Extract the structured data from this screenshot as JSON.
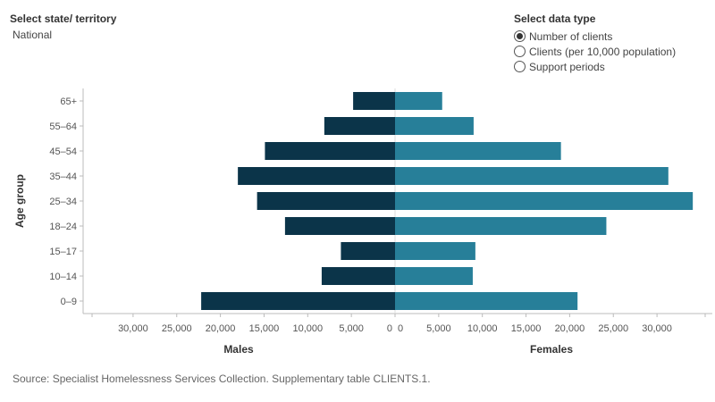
{
  "filters": {
    "state_label": "Select state/ territory",
    "state_value": "National",
    "datatype_label": "Select data type",
    "datatype_options": [
      {
        "label": "Number of clients",
        "selected": true
      },
      {
        "label": "Clients (per 10,000 population)",
        "selected": false
      },
      {
        "label": "Support periods",
        "selected": false
      }
    ]
  },
  "chart_data": {
    "type": "bar",
    "orientation": "horizontal-population-pyramid",
    "ylabel": "Age group",
    "categories": [
      "65+",
      "55–64",
      "45–54",
      "35–44",
      "25–34",
      "18–24",
      "15–17",
      "10–14",
      "0–9"
    ],
    "series": [
      {
        "name": "Males",
        "side": "left",
        "color": "#0b3449",
        "values": [
          4800,
          8100,
          14900,
          18000,
          15800,
          12600,
          6200,
          8400,
          22200
        ]
      },
      {
        "name": "Females",
        "side": "right",
        "color": "#277f99",
        "values": [
          5400,
          9000,
          19000,
          31300,
          34100,
          24200,
          9200,
          8900,
          20900
        ]
      }
    ],
    "left_ticks": [
      "30,000",
      "25,000",
      "20,000",
      "15,000",
      "10,000",
      "5,000",
      "0"
    ],
    "right_ticks": [
      "0",
      "5,000",
      "10,000",
      "15,000",
      "20,000",
      "25,000",
      "30,000"
    ],
    "left_xlabel": "Males",
    "right_xlabel": "Females",
    "xlim": [
      0,
      35000
    ],
    "grid": false,
    "legend": "none"
  },
  "source": "Source: Specialist Homelessness Services Collection. Supplementary table CLIENTS.1."
}
